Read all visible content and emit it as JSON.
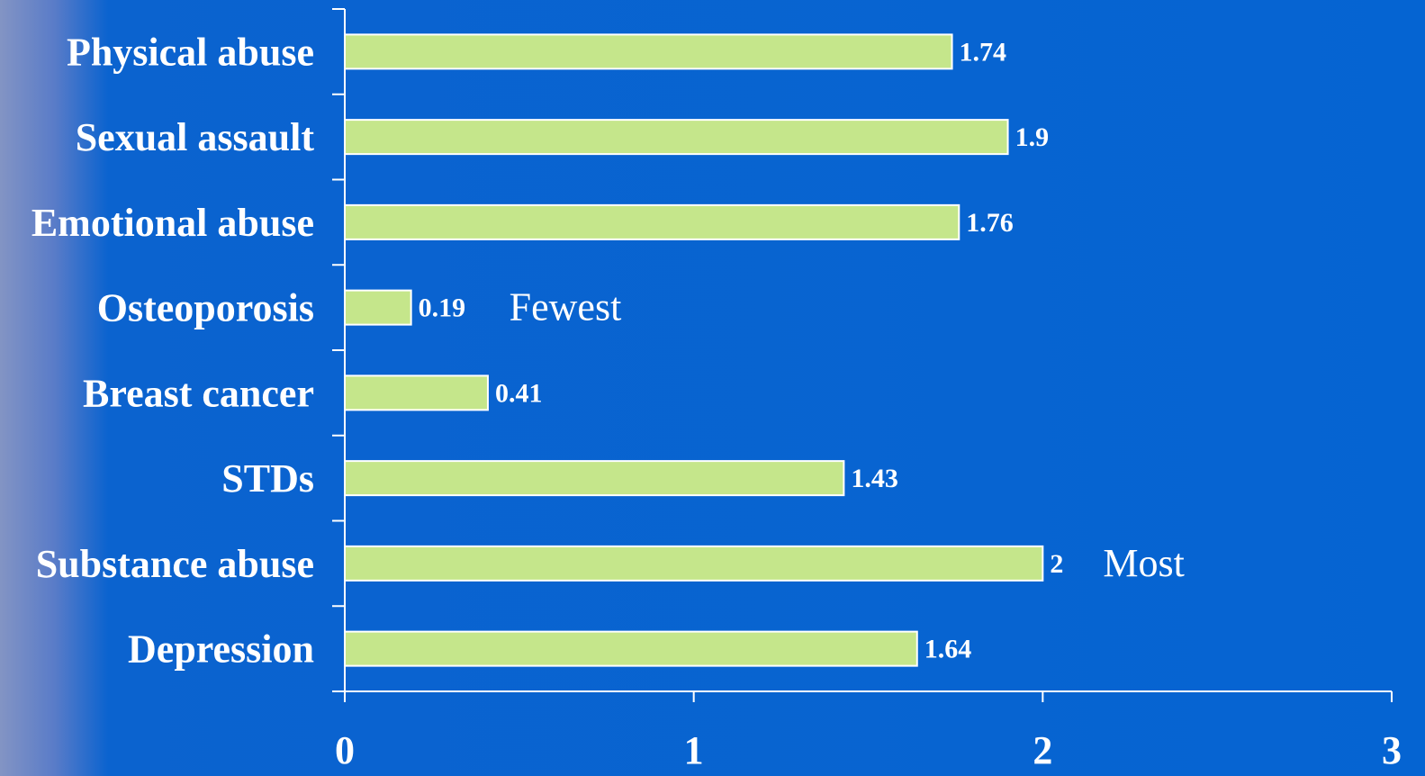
{
  "chart_data": {
    "type": "bar",
    "orientation": "horizontal",
    "categories": [
      "Physical abuse",
      "Sexual assault",
      "Emotional abuse",
      "Osteoporosis",
      "Breast cancer",
      "STDs",
      "Substance abuse",
      "Depression"
    ],
    "values": [
      1.74,
      1.9,
      1.76,
      0.19,
      0.41,
      1.43,
      2,
      1.64
    ],
    "value_labels": [
      "1.74",
      "1.9",
      "1.76",
      "0.19",
      "0.41",
      "1.43",
      "2",
      "1.64"
    ],
    "xlim": [
      0,
      3
    ],
    "x_ticks": [
      0,
      1,
      2,
      3
    ],
    "x_tick_labels": [
      "0",
      "1",
      "2",
      "3"
    ],
    "annotations": [
      {
        "category": "Osteoporosis",
        "text": "Fewest"
      },
      {
        "category": "Substance abuse",
        "text": "Most"
      }
    ],
    "title": "",
    "xlabel": "",
    "ylabel": "",
    "grid": false,
    "legend": "none",
    "colors": {
      "bar_fill": "#c5e68b",
      "bar_stroke": "#ffffff",
      "background": "#0564d2",
      "text": "#ffffff"
    }
  }
}
